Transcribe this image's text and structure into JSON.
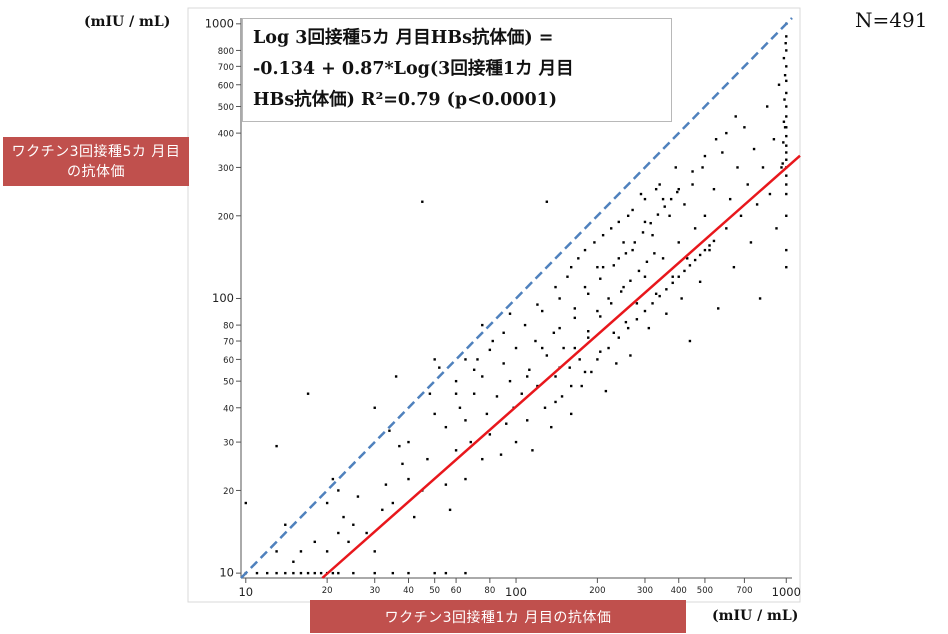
{
  "y_unit": "(mIU / mL)",
  "x_unit": "(mIU / mL)",
  "n_label": "N=491",
  "equation": {
    "line1": "Log 3回接種5カ 月目HBs抗体価) =",
    "line2": "-0.134 + 0.87*Log(3回接種1カ 月目",
    "line3": "HBs抗体価)    R²=0.79 (p<0.0001)"
  },
  "colors": {
    "regression": "#e8171c",
    "identity": "#4f81bd",
    "label_box": "#c0504d",
    "points": "#000000"
  },
  "chart_data": {
    "type": "scatter",
    "title": "",
    "xlabel": "ワクチン3回接種1カ 月目の抗体価",
    "ylabel": "ワクチン3回接種5カ 月目の抗体価",
    "x_scale": "log",
    "y_scale": "log",
    "xlim": [
      9.6,
      1050
    ],
    "ylim": [
      9.6,
      1050
    ],
    "x_ticks": [
      10,
      20,
      30,
      40,
      50,
      60,
      80,
      100,
      200,
      300,
      400,
      500,
      700,
      1000
    ],
    "x_tick_labels": [
      "10",
      "20",
      "30",
      "40",
      "50",
      "60",
      "80",
      "100",
      "200",
      "300",
      "400",
      "500",
      "700",
      "1000"
    ],
    "y_ticks": [
      10,
      20,
      30,
      40,
      50,
      60,
      70,
      80,
      100,
      200,
      300,
      400,
      500,
      600,
      700,
      800,
      1000
    ],
    "y_tick_labels": [
      "10",
      "20",
      "30",
      "40",
      "50",
      "60",
      "70",
      "80",
      "100",
      "200",
      "300",
      "400",
      "500",
      "600",
      "700",
      "800",
      "1000"
    ],
    "regression": {
      "intercept": -0.134,
      "slope": 0.87,
      "r2": 0.79,
      "p": "<0.0001"
    },
    "identity_line": {
      "from": 9.6,
      "to": 1050
    },
    "series": [
      {
        "points": [
          [
            10,
            10
          ],
          [
            11,
            10
          ],
          [
            12,
            10
          ],
          [
            13,
            10
          ],
          [
            14,
            10
          ],
          [
            15,
            10
          ],
          [
            16,
            10
          ],
          [
            17,
            10
          ],
          [
            18,
            10
          ],
          [
            19,
            10
          ],
          [
            20,
            10
          ],
          [
            21,
            10
          ],
          [
            22,
            10
          ],
          [
            25,
            10
          ],
          [
            30,
            10
          ],
          [
            35,
            10
          ],
          [
            40,
            10
          ],
          [
            50,
            10
          ],
          [
            55,
            10
          ],
          [
            65,
            10
          ],
          [
            13,
            12
          ],
          [
            14,
            15
          ],
          [
            10,
            18
          ],
          [
            13,
            29
          ],
          [
            17,
            45
          ],
          [
            15,
            11
          ],
          [
            16,
            12
          ],
          [
            18,
            13
          ],
          [
            20,
            12
          ],
          [
            22,
            14
          ],
          [
            23,
            16
          ],
          [
            25,
            15
          ],
          [
            20,
            18
          ],
          [
            22,
            20
          ],
          [
            21,
            22
          ],
          [
            24,
            13
          ],
          [
            26,
            19
          ],
          [
            28,
            14
          ],
          [
            30,
            12
          ],
          [
            32,
            17
          ],
          [
            33,
            21
          ],
          [
            35,
            18
          ],
          [
            34,
            33
          ],
          [
            36,
            52
          ],
          [
            37,
            29
          ],
          [
            38,
            25
          ],
          [
            40,
            22
          ],
          [
            42,
            16
          ],
          [
            45,
            20
          ],
          [
            47,
            26
          ],
          [
            48,
            45
          ],
          [
            50,
            38
          ],
          [
            52,
            56
          ],
          [
            55,
            21
          ],
          [
            55,
            34
          ],
          [
            57,
            17
          ],
          [
            60,
            28
          ],
          [
            60,
            50
          ],
          [
            62,
            40
          ],
          [
            65,
            22
          ],
          [
            65,
            36
          ],
          [
            68,
            30
          ],
          [
            70,
            45
          ],
          [
            72,
            60
          ],
          [
            75,
            26
          ],
          [
            75,
            52
          ],
          [
            78,
            38
          ],
          [
            80,
            32
          ],
          [
            82,
            70
          ],
          [
            85,
            44
          ],
          [
            88,
            27
          ],
          [
            90,
            58
          ],
          [
            92,
            35
          ],
          [
            95,
            50
          ],
          [
            98,
            40
          ],
          [
            100,
            66
          ],
          [
            100,
            30
          ],
          [
            105,
            45
          ],
          [
            108,
            80
          ],
          [
            110,
            36
          ],
          [
            112,
            55
          ],
          [
            115,
            28
          ],
          [
            118,
            70
          ],
          [
            120,
            48
          ],
          [
            125,
            90
          ],
          [
            128,
            40
          ],
          [
            130,
            62
          ],
          [
            135,
            34
          ],
          [
            138,
            75
          ],
          [
            140,
            52
          ],
          [
            145,
            100
          ],
          [
            148,
            44
          ],
          [
            150,
            66
          ],
          [
            155,
            120
          ],
          [
            158,
            56
          ],
          [
            160,
            38
          ],
          [
            165,
            85
          ],
          [
            170,
            140
          ],
          [
            172,
            60
          ],
          [
            175,
            48
          ],
          [
            180,
            110
          ],
          [
            185,
            72
          ],
          [
            190,
            54
          ],
          [
            195,
            160
          ],
          [
            200,
            90
          ],
          [
            205,
            64
          ],
          [
            210,
            130
          ],
          [
            215,
            46
          ],
          [
            220,
            100
          ],
          [
            225,
            180
          ],
          [
            230,
            75
          ],
          [
            235,
            58
          ],
          [
            240,
            140
          ],
          [
            250,
            110
          ],
          [
            255,
            82
          ],
          [
            260,
            200
          ],
          [
            265,
            62
          ],
          [
            270,
            150
          ],
          [
            280,
            96
          ],
          [
            290,
            240
          ],
          [
            300,
            120
          ],
          [
            310,
            78
          ],
          [
            320,
            170
          ],
          [
            330,
            104
          ],
          [
            340,
            260
          ],
          [
            350,
            140
          ],
          [
            360,
            88
          ],
          [
            370,
            200
          ],
          [
            380,
            120
          ],
          [
            390,
            300
          ],
          [
            400,
            160
          ],
          [
            410,
            100
          ],
          [
            420,
            220
          ],
          [
            430,
            140
          ],
          [
            440,
            70
          ],
          [
            450,
            260
          ],
          [
            460,
            180
          ],
          [
            480,
            115
          ],
          [
            490,
            300
          ],
          [
            500,
            200
          ],
          [
            520,
            150
          ],
          [
            540,
            250
          ],
          [
            560,
            92
          ],
          [
            580,
            340
          ],
          [
            600,
            180
          ],
          [
            620,
            230
          ],
          [
            640,
            130
          ],
          [
            660,
            300
          ],
          [
            680,
            200
          ],
          [
            700,
            420
          ],
          [
            720,
            260
          ],
          [
            740,
            160
          ],
          [
            760,
            350
          ],
          [
            780,
            220
          ],
          [
            800,
            100
          ],
          [
            820,
            300
          ],
          [
            850,
            500
          ],
          [
            870,
            240
          ],
          [
            900,
            380
          ],
          [
            920,
            180
          ],
          [
            940,
            600
          ],
          [
            960,
            300
          ],
          [
            980,
            750
          ],
          [
            990,
            420
          ],
          [
            1000,
            1000
          ],
          [
            1000,
            900
          ],
          [
            1000,
            800
          ],
          [
            1000,
            700
          ],
          [
            1000,
            620
          ],
          [
            1000,
            560
          ],
          [
            1000,
            500
          ],
          [
            1000,
            460
          ],
          [
            1000,
            420
          ],
          [
            1000,
            390
          ],
          [
            1000,
            360
          ],
          [
            1000,
            340
          ],
          [
            1000,
            320
          ],
          [
            1000,
            300
          ],
          [
            1000,
            280
          ],
          [
            1000,
            260
          ],
          [
            1000,
            240
          ],
          [
            1000,
            200
          ],
          [
            1000,
            150
          ],
          [
            1000,
            130
          ],
          [
            995,
            850
          ],
          [
            990,
            650
          ],
          [
            985,
            530
          ],
          [
            980,
            440
          ],
          [
            975,
            370
          ],
          [
            970,
            310
          ],
          [
            200,
            130
          ],
          [
            250,
            160
          ],
          [
            300,
            190
          ],
          [
            350,
            230
          ],
          [
            400,
            250
          ],
          [
            450,
            290
          ],
          [
            500,
            330
          ],
          [
            550,
            380
          ],
          [
            600,
            400
          ],
          [
            650,
            460
          ],
          [
            30,
            40
          ],
          [
            40,
            30
          ],
          [
            50,
            60
          ],
          [
            60,
            45
          ],
          [
            70,
            55
          ],
          [
            80,
            65
          ],
          [
            90,
            75
          ],
          [
            120,
            95
          ],
          [
            140,
            110
          ],
          [
            160,
            130
          ],
          [
            180,
            150
          ],
          [
            210,
            170
          ],
          [
            240,
            190
          ],
          [
            270,
            210
          ],
          [
            300,
            230
          ],
          [
            330,
            250
          ],
          [
            130,
            225
          ],
          [
            45,
            225
          ],
          [
            65,
            60
          ],
          [
            75,
            80
          ],
          [
            95,
            88
          ],
          [
            110,
            52
          ],
          [
            125,
            66
          ],
          [
            145,
            78
          ],
          [
            165,
            92
          ],
          [
            185,
            104
          ],
          [
            205,
            118
          ],
          [
            230,
            132
          ],
          [
            255,
            146
          ],
          [
            275,
            160
          ],
          [
            295,
            174
          ],
          [
            315,
            188
          ],
          [
            335,
            202
          ],
          [
            355,
            216
          ],
          [
            375,
            230
          ],
          [
            395,
            244
          ],
          [
            145,
            56
          ],
          [
            165,
            66
          ],
          [
            185,
            76
          ],
          [
            205,
            86
          ],
          [
            225,
            96
          ],
          [
            245,
            106
          ],
          [
            265,
            116
          ],
          [
            285,
            126
          ],
          [
            305,
            136
          ],
          [
            325,
            146
          ],
          [
            140,
            42
          ],
          [
            160,
            48
          ],
          [
            180,
            54
          ],
          [
            200,
            60
          ],
          [
            220,
            66
          ],
          [
            240,
            72
          ],
          [
            260,
            78
          ],
          [
            280,
            84
          ],
          [
            300,
            90
          ],
          [
            320,
            96
          ],
          [
            340,
            102
          ],
          [
            360,
            108
          ],
          [
            380,
            114
          ],
          [
            400,
            120
          ],
          [
            420,
            126
          ],
          [
            440,
            132
          ],
          [
            460,
            138
          ],
          [
            480,
            144
          ],
          [
            500,
            150
          ],
          [
            520,
            156
          ],
          [
            540,
            162
          ]
        ]
      }
    ]
  }
}
